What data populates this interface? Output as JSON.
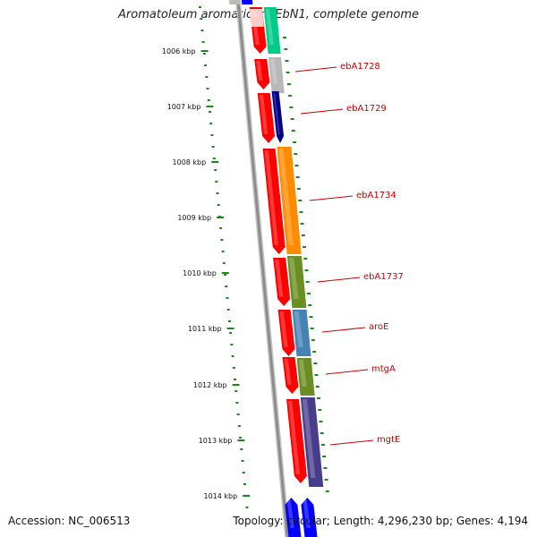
{
  "title": "Aromatoleum aromaticum EbN1, complete genome",
  "footer": {
    "accession": "Accession: NC_006513",
    "summary": "Topology: circular; Length: 4,296,230 bp; Genes: 4,194"
  },
  "ruler": {
    "unit": "kbp",
    "ticks": [
      "1006 kbp",
      "1007 kbp",
      "1008 kbp",
      "1009 kbp",
      "1010 kbp",
      "1011 kbp",
      "1012 kbp",
      "1013 kbp",
      "1014 kbp"
    ]
  },
  "gene_labels": [
    "ebA1728",
    "ebA1729",
    "ebA1734",
    "ebA1737",
    "aroE",
    "mtgA",
    "mgtE"
  ],
  "colors": {
    "forward_cds": "#ff0000",
    "reverse_cds": "#0000ff",
    "backbone": "#8c8c8c",
    "ruler": "#1a8a1a",
    "label": "#cc0000",
    "feature_colors": [
      "#e0e0e0",
      "#00cc88",
      "#b8b8b8",
      "#00008b",
      "#ff8c00",
      "#6b8e23",
      "#4682b4",
      "#6b8e23",
      "#483d8b"
    ]
  }
}
